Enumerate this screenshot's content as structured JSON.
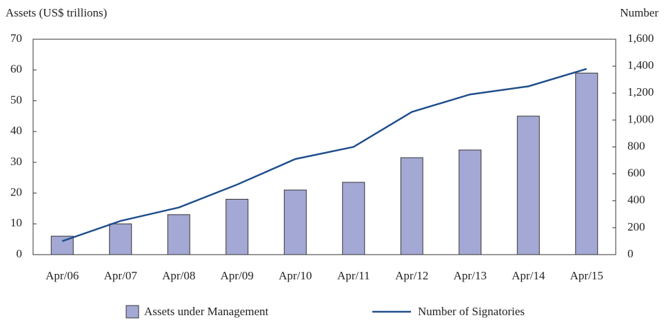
{
  "chart_data": {
    "type": "bar",
    "y_label": "Assets (US$ trillions)",
    "y2_label": "Number",
    "categories": [
      "Apr/06",
      "Apr/07",
      "Apr/08",
      "Apr/09",
      "Apr/10",
      "Apr/11",
      "Apr/12",
      "Apr/13",
      "Apr/14",
      "Apr/15"
    ],
    "series": [
      {
        "name": "Assets under Management",
        "type": "bar",
        "color": "#a3a8d4",
        "values": [
          6,
          10,
          13,
          18,
          21,
          23.5,
          31.5,
          34,
          45,
          59
        ]
      },
      {
        "name": "Number of Signatories",
        "type": "line",
        "axis": "y2",
        "color": "#1f4e8c",
        "values": [
          100,
          250,
          350,
          520,
          710,
          800,
          1060,
          1190,
          1250,
          1380
        ]
      }
    ],
    "ylim": [
      0,
      70
    ],
    "yticks": [
      0,
      10,
      20,
      30,
      40,
      50,
      60,
      70
    ],
    "y2lim": [
      0,
      1600
    ],
    "y2ticks": [
      0,
      200,
      400,
      600,
      800,
      {
        "value": 1000,
        "label": "1,000"
      },
      {
        "value": 1200,
        "label": "1,200"
      },
      {
        "value": 1400,
        "label": "1,400"
      },
      {
        "value": 1600,
        "label": "1,600"
      }
    ],
    "legend": "bottom"
  }
}
